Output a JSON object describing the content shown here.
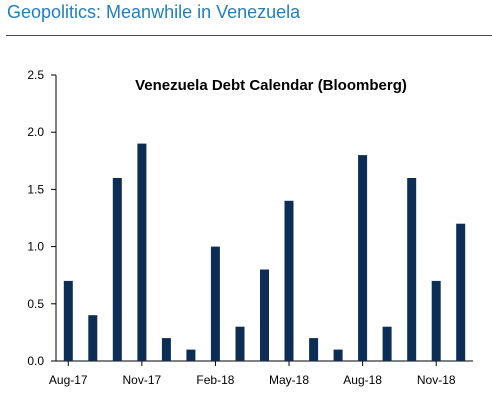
{
  "header": {
    "title": "Geopolitics: Meanwhile in Venezuela"
  },
  "colors": {
    "bar": "#0c2d56",
    "header_text": "#1f7fc0",
    "axis": "#000000"
  },
  "chart_data": {
    "type": "bar",
    "title": "Venezuela Debt Calendar (Bloomberg)",
    "xlabel": "",
    "ylabel": "",
    "categories": [
      "Aug-17",
      "Sep-17",
      "Oct-17",
      "Nov-17",
      "Dec-17",
      "Jan-18",
      "Feb-18",
      "Mar-18",
      "Apr-18",
      "May-18",
      "Jun-18",
      "Jul-18",
      "Aug-18",
      "Sep-18",
      "Oct-18",
      "Nov-18",
      "Dec-18"
    ],
    "x_tick_labels": [
      "Aug-17",
      "Nov-17",
      "Feb-18",
      "May-18",
      "Aug-18",
      "Nov-18"
    ],
    "values": [
      0.7,
      0.4,
      1.6,
      1.9,
      0.2,
      0.1,
      1.0,
      0.3,
      0.8,
      1.4,
      0.2,
      0.1,
      1.8,
      0.3,
      1.6,
      0.7,
      1.2
    ],
    "ylim": [
      0,
      2.5
    ],
    "y_ticks": [
      "0.0",
      "0.5",
      "1.0",
      "1.5",
      "2.0",
      "2.5"
    ],
    "grid": false,
    "legend": "none"
  }
}
